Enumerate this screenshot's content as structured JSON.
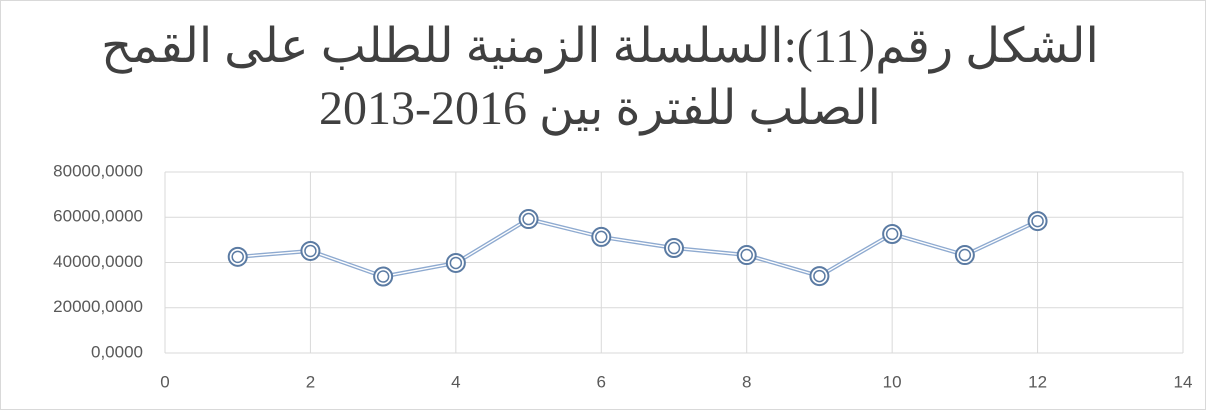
{
  "chart_data": {
    "type": "line",
    "title": [
      "الشكل رقم(11):السلسلة الزمنية للطلب على القمح",
      "الصلب للفترة بين 2016-2013"
    ],
    "x": [
      1,
      2,
      3,
      4,
      5,
      6,
      7,
      8,
      9,
      10,
      11,
      12
    ],
    "series": [
      {
        "color": "#8eaad0",
        "marker_color": "#5b7ba3",
        "values": [
          42500,
          45100,
          33800,
          39800,
          59200,
          51300,
          46400,
          43300,
          34000,
          52600,
          43300,
          58300
        ]
      }
    ],
    "xlim": [
      0,
      14
    ],
    "xticks": [
      0,
      2,
      4,
      6,
      8,
      10,
      12,
      14
    ],
    "ylim": [
      0,
      80000
    ],
    "yticks": [
      {
        "value": 0,
        "label": "0,0000"
      },
      {
        "value": 20000,
        "label": "20000,0000"
      },
      {
        "value": 40000,
        "label": "40000,0000"
      },
      {
        "value": 60000,
        "label": "60000,0000"
      },
      {
        "value": 80000,
        "label": "80000,0000"
      }
    ],
    "grid": true
  }
}
